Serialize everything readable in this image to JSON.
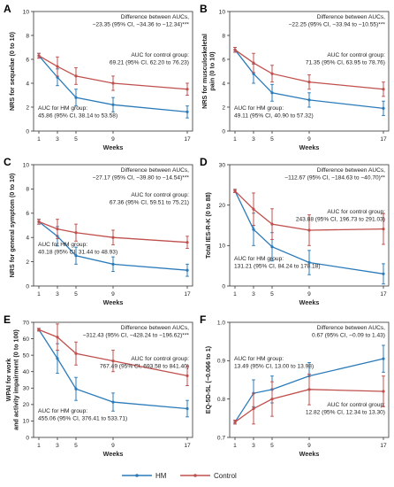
{
  "colors": {
    "hm": "#2b7bba",
    "control": "#c0504d"
  },
  "legend": {
    "hm_label": "HM",
    "control_label": "Control"
  },
  "chart_data": [
    {
      "panel": "A",
      "type": "line",
      "xlabel": "Weeks",
      "ylabel": "NRS for sequelae (0 to 10)",
      "x": [
        1,
        3,
        5,
        9,
        17
      ],
      "xticks": [
        1,
        3,
        5,
        9,
        17
      ],
      "ylim": [
        0,
        10
      ],
      "yticks": [
        0,
        2,
        4,
        6,
        8,
        10
      ],
      "series": [
        {
          "name": "HM",
          "values": [
            6.3,
            4.5,
            2.8,
            2.2,
            1.6
          ],
          "err": [
            0.2,
            0.7,
            0.7,
            0.6,
            0.5
          ]
        },
        {
          "name": "Control",
          "values": [
            6.3,
            5.4,
            4.6,
            4.0,
            3.5
          ],
          "err": [
            0.2,
            0.8,
            0.7,
            0.6,
            0.5
          ]
        }
      ],
      "annotations": {
        "diff_title": "Difference between AUCs,",
        "diff_value": "−23.35 (95% CI, −34.36 to −12.34)***",
        "control_title": "AUC for control group:",
        "control_value": "69.21 (95% CI, 62.20 to 76.23)",
        "hm_title": "AUC for HM group:",
        "hm_value": "45.86 (95% CI, 38.14 to 53.58)"
      }
    },
    {
      "panel": "B",
      "type": "line",
      "xlabel": "Weeks",
      "ylabel": "NRS for musculoskeletal pain (0 to 10)",
      "x": [
        1,
        3,
        5,
        9,
        17
      ],
      "xticks": [
        1,
        3,
        5,
        9,
        17
      ],
      "ylim": [
        0,
        10
      ],
      "yticks": [
        0,
        2,
        4,
        6,
        8,
        10
      ],
      "series": [
        {
          "name": "HM",
          "values": [
            6.8,
            4.8,
            3.2,
            2.6,
            1.9
          ],
          "err": [
            0.2,
            0.8,
            0.7,
            0.6,
            0.6
          ]
        },
        {
          "name": "Control",
          "values": [
            6.8,
            5.7,
            4.8,
            4.1,
            3.5
          ],
          "err": [
            0.2,
            0.8,
            0.7,
            0.6,
            0.6
          ]
        }
      ],
      "annotations": {
        "diff_title": "Difference between AUCs,",
        "diff_value": "−22.25 (95% CI, −33.94 to −10.55)***",
        "control_title": "AUC for control group:",
        "control_value": "71.35 (95% CI, 63.95 to 78.76)",
        "hm_title": "AUC for HM group:",
        "hm_value": "49.11 (95% CI, 40.90 to 57.32)"
      }
    },
    {
      "panel": "C",
      "type": "line",
      "xlabel": "Weeks",
      "ylabel": "NRS for general symptom (0 to 10)",
      "x": [
        1,
        3,
        5,
        9,
        17
      ],
      "xticks": [
        1,
        3,
        5,
        9,
        17
      ],
      "ylim": [
        0,
        10
      ],
      "yticks": [
        0,
        2,
        4,
        6,
        8,
        10
      ],
      "series": [
        {
          "name": "HM",
          "values": [
            5.3,
            4.1,
            2.5,
            1.8,
            1.3
          ],
          "err": [
            0.2,
            0.8,
            0.7,
            0.6,
            0.5
          ]
        },
        {
          "name": "Control",
          "values": [
            5.3,
            4.7,
            4.4,
            4.0,
            3.6
          ],
          "err": [
            0.2,
            0.8,
            0.7,
            0.6,
            0.5
          ]
        }
      ],
      "annotations": {
        "diff_title": "Difference between AUCs,",
        "diff_value": "−27.17 (95% CI, −39.80 to −14.54)***",
        "control_title": "AUC for control group:",
        "control_value": "67.36 (95% CI, 59.51 to 75.21)",
        "hm_title": "AUC for HM group:",
        "hm_value": "40.18 (95% CI, 31.44 to 48.93)"
      }
    },
    {
      "panel": "D",
      "type": "line",
      "xlabel": "Weeks",
      "ylabel": "Total IES-R-K (0 to 88)",
      "x": [
        1,
        3,
        5,
        9,
        17
      ],
      "xticks": [
        1,
        3,
        5,
        9,
        17
      ],
      "ylim": [
        0,
        30
      ],
      "yticks": [
        0,
        10,
        20,
        30
      ],
      "series": [
        {
          "name": "HM",
          "values": [
            23.5,
            14.0,
            9.7,
            5.8,
            3.0
          ],
          "err": [
            0.4,
            4.0,
            3.5,
            3.0,
            2.5
          ]
        },
        {
          "name": "Control",
          "values": [
            23.5,
            19.0,
            15.3,
            13.8,
            14.1
          ],
          "err": [
            0.4,
            4.0,
            3.8,
            3.8,
            3.8
          ]
        }
      ],
      "annotations": {
        "diff_title": "Difference between AUCs,",
        "diff_value": "−112.67 (95% CI, −184.63 to −40.70)**",
        "control_title": "AUC for control group:",
        "control_value": "243.88 (95% CI, 196.73 to 291.03)",
        "hm_title": "AUC for HM group:",
        "hm_value": "131.21 (95% CI, 84.24 to 178.18)"
      }
    },
    {
      "panel": "E",
      "type": "line",
      "xlabel": "Weeks",
      "ylabel": "WPAI for work and activity impairment (0 to 100)",
      "x": [
        1,
        3,
        5,
        9,
        17
      ],
      "xticks": [
        1,
        3,
        5,
        9,
        17
      ],
      "ylim": [
        0,
        70
      ],
      "yticks": [
        0,
        10,
        20,
        30,
        40,
        50,
        60,
        70
      ],
      "series": [
        {
          "name": "HM",
          "values": [
            65.5,
            48.0,
            29.5,
            21.5,
            17.5
          ],
          "err": [
            0.8,
            9.0,
            7.0,
            5.5,
            5.0
          ]
        },
        {
          "name": "Control",
          "values": [
            65.5,
            61.0,
            51.0,
            46.5,
            37.5
          ],
          "err": [
            0.8,
            8.0,
            7.0,
            6.5,
            6.0
          ]
        }
      ],
      "annotations": {
        "diff_title": "Difference between AUCs,",
        "diff_value": "−312.43 (95% CI, −428.24 to −196.62)***",
        "control_title": "AUC for control group:",
        "control_value": "767.49 (95% CI, 693.58 to 841.40)",
        "hm_title": "AUC for HM group:",
        "hm_value": "455.06 (95% CI, 376.41 to 533.71)"
      }
    },
    {
      "panel": "F",
      "type": "line",
      "xlabel": "Weeks",
      "ylabel": "EQ-5D-5L (−0.066 to 1)",
      "x": [
        1,
        3,
        5,
        9,
        17
      ],
      "xticks": [
        1,
        3,
        5,
        9,
        17
      ],
      "ylim": [
        0.7,
        1.0
      ],
      "yticks": [
        0.7,
        0.8,
        0.9,
        1.0
      ],
      "series": [
        {
          "name": "HM",
          "values": [
            0.74,
            0.815,
            0.825,
            0.86,
            0.905
          ],
          "err": [
            0.005,
            0.035,
            0.035,
            0.035,
            0.035
          ]
        },
        {
          "name": "Control",
          "values": [
            0.74,
            0.775,
            0.8,
            0.825,
            0.82
          ],
          "err": [
            0.005,
            0.04,
            0.045,
            0.04,
            0.04
          ]
        }
      ],
      "annotations": {
        "diff_title": "Difference between AUCs,",
        "diff_value": "0.67 (95% CI, −0.09 to 1.43)",
        "hm_title": "AUC for HM group:",
        "hm_value": "13.49 (95% CI, 13.00 to 13.98)",
        "control_title": "AUC for control group:",
        "control_value": "12.82 (95% CI, 12.34 to 13.30)"
      }
    }
  ]
}
